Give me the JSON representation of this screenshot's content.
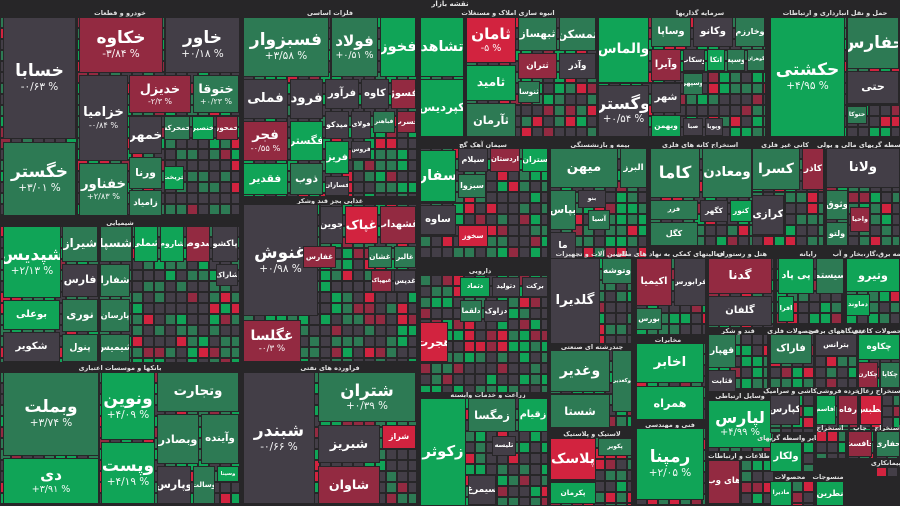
{
  "title": "نقشه بازار",
  "colors": {
    "up": "#10a457",
    "up-mild": "#2d7a54",
    "flat": "#433e47",
    "down-mild": "#932a41",
    "down": "#d2233f",
    "background": "#272628"
  },
  "sectors": [
    {
      "title": "خودرو و قطعات",
      "tiles": [
        {
          "name": "خسابا",
          "change": "-۰/۶۳ %",
          "trend": "flat"
        },
        {
          "name": "خکاوه",
          "change": "-۳/۸۴ %",
          "trend": "down-mild"
        },
        {
          "name": "خاور",
          "change": "+۰/۱۸ %",
          "trend": "flat"
        },
        {
          "name": "خگستر",
          "change": "+۳/۰۱ %",
          "trend": "up-mild"
        },
        {
          "name": "خزامیا",
          "change": "-۰/۸۴ %",
          "trend": "flat"
        },
        {
          "name": "خدیزل",
          "change": "-۲/۳ %",
          "trend": "down-mild"
        },
        {
          "name": "ختوقا",
          "change": "+۰/۲۳ %",
          "trend": "up-mild"
        },
        {
          "name": "خفناور",
          "change": "+۲/۸۳ %",
          "trend": "up-mild"
        },
        {
          "name": "خمهر",
          "trend": "flat"
        },
        {
          "name": "ورنا",
          "trend": "up-mild"
        },
        {
          "name": "خمحرکه",
          "trend": "up-mild"
        },
        {
          "name": "خنصیر",
          "trend": "up"
        },
        {
          "name": "خمحور",
          "trend": "down-mild"
        },
        {
          "name": "زامیاد",
          "trend": "up-mild"
        },
        {
          "name": "خریخت",
          "trend": "up"
        }
      ]
    },
    {
      "title": "فلزات اساسی",
      "tiles": [
        {
          "name": "فسبزوار",
          "change": "+۳/۵۸ %",
          "trend": "up-mild"
        },
        {
          "name": "فولاد",
          "change": "+۰/۵۱ %",
          "trend": "up-mild"
        },
        {
          "name": "فخوز",
          "trend": "up"
        },
        {
          "name": "فملی",
          "trend": "flat"
        },
        {
          "name": "فرود",
          "trend": "flat"
        },
        {
          "name": "فرآور",
          "trend": "flat"
        },
        {
          "name": "کاوه",
          "trend": "flat"
        },
        {
          "name": "فسوژ",
          "trend": "down-mild"
        },
        {
          "name": "فجر",
          "change": "-۰/۵۵ %",
          "trend": "down-mild"
        },
        {
          "name": "فگستر",
          "trend": "up"
        },
        {
          "name": "میدکو",
          "trend": "flat"
        },
        {
          "name": "فولای",
          "trend": "flat"
        },
        {
          "name": "فباهنر",
          "trend": "up-mild"
        },
        {
          "name": "فسرب",
          "trend": "down-mild"
        },
        {
          "name": "فقدیر",
          "trend": "up"
        },
        {
          "name": "ذوب",
          "trend": "up-mild"
        },
        {
          "name": "فروس",
          "trend": "flat"
        },
        {
          "name": "فریز",
          "trend": "up"
        },
        {
          "name": "فسازان",
          "trend": "flat"
        }
      ]
    },
    {
      "title": "",
      "tiles": [
        {
          "name": "تشاهد",
          "trend": "up"
        },
        {
          "name": "کپردیس",
          "trend": "up"
        }
      ]
    },
    {
      "title": "انبوه سازی املاک و مستغلات",
      "tiles": [
        {
          "name": "ثامان",
          "change": "-۵ %",
          "trend": "down"
        },
        {
          "name": "ثامید",
          "trend": "up"
        },
        {
          "name": "ثآرمان",
          "trend": "up-mild"
        },
        {
          "name": "ثبهساز",
          "trend": "up-mild"
        },
        {
          "name": "ثمسکن",
          "trend": "up-mild"
        },
        {
          "name": "ثتران",
          "trend": "down-mild"
        },
        {
          "name": "وآذر",
          "trend": "flat"
        },
        {
          "name": "ثنوسا",
          "trend": "up-mild"
        }
      ]
    },
    {
      "title": "سرمایه گذاریها",
      "tiles": [
        {
          "name": "والماس",
          "trend": "up"
        },
        {
          "name": "وگستر",
          "change": "+۰/۵۴ %",
          "trend": "flat"
        },
        {
          "name": "وساپا",
          "trend": "up-mild"
        },
        {
          "name": "وکانو",
          "trend": "flat"
        },
        {
          "name": "وخارزم",
          "trend": "up-mild"
        },
        {
          "name": "وآیرا",
          "trend": "down-mild"
        },
        {
          "name": "وسکاب",
          "trend": "flat"
        },
        {
          "name": "اتکا",
          "trend": "up"
        },
        {
          "name": "وسپه",
          "trend": "up-mild"
        },
        {
          "name": "گوهران",
          "trend": "up-mild"
        },
        {
          "name": "وسپهر",
          "trend": "up-mild"
        },
        {
          "name": "شهر",
          "trend": "flat"
        },
        {
          "name": "وبهمن",
          "trend": "up"
        },
        {
          "name": "صبا",
          "trend": "flat"
        },
        {
          "name": "وپویا",
          "trend": "flat"
        }
      ]
    },
    {
      "title": "حمل و نقل انبارداری و ارتباطات",
      "tiles": [
        {
          "name": "حکشتی",
          "change": "+۴/۹۵ %",
          "trend": "up"
        },
        {
          "name": "حفارس",
          "trend": "up-mild"
        },
        {
          "name": "حتی",
          "trend": "flat"
        },
        {
          "name": "حتوکا",
          "trend": "up-mild"
        }
      ]
    },
    {
      "title": "شیمیایی",
      "tiles": [
        {
          "name": "شپدیس",
          "change": "+۲/۱۳ %",
          "trend": "up"
        },
        {
          "name": "شیراز",
          "trend": "up-mild"
        },
        {
          "name": "شسپا",
          "trend": "up-mild"
        },
        {
          "name": "شملی",
          "trend": "up"
        },
        {
          "name": "شاروم",
          "trend": "up"
        },
        {
          "name": "شدوص",
          "trend": "down-mild"
        },
        {
          "name": "پاکشو",
          "trend": "flat"
        },
        {
          "name": "بوعلی",
          "trend": "up"
        },
        {
          "name": "شکویر",
          "trend": "flat"
        },
        {
          "name": "فارس",
          "trend": "flat"
        },
        {
          "name": "نوری",
          "trend": "up-mild"
        },
        {
          "name": "پنول",
          "trend": "up-mild"
        },
        {
          "name": "شفارا",
          "trend": "up-mild"
        },
        {
          "name": "پارسان",
          "trend": "up-mild"
        },
        {
          "name": "شیمیس",
          "trend": "up-mild"
        },
        {
          "name": "شاراک",
          "trend": "flat"
        }
      ]
    },
    {
      "title": "غذایی بجز قند وشکر",
      "tiles": [
        {
          "name": "غنوش",
          "change": "+۰/۹۸ %",
          "trend": "flat"
        },
        {
          "name": "غگلسا",
          "change": "-۰/۳ %",
          "trend": "down-mild"
        },
        {
          "name": "جوین",
          "trend": "flat"
        },
        {
          "name": "غپاک",
          "trend": "down"
        },
        {
          "name": "غشهداب",
          "trend": "down-mild"
        },
        {
          "name": "غفارس",
          "trend": "down-mild"
        },
        {
          "name": "غشان",
          "trend": "up-mild"
        },
        {
          "name": "غالبر",
          "trend": "up-mild"
        },
        {
          "name": "غدیس",
          "trend": "flat"
        },
        {
          "name": "غبهپاک",
          "trend": "down-mild"
        }
      ]
    },
    {
      "title": "سیمان آهک گچ",
      "tiles": [
        {
          "name": "سیلام",
          "trend": "flat"
        },
        {
          "name": "اردستان",
          "trend": "down-mild"
        },
        {
          "name": "ستران",
          "trend": "up"
        },
        {
          "name": "ساوه",
          "trend": "flat"
        },
        {
          "name": "سفار",
          "trend": "up"
        },
        {
          "name": "سبزوا",
          "trend": "up-mild"
        },
        {
          "name": "سخوز",
          "trend": "down"
        }
      ]
    },
    {
      "title": "بیمه و بازنشستگی",
      "tiles": [
        {
          "name": "میهن",
          "trend": "up-mild"
        },
        {
          "name": "البرز",
          "trend": "up-mild"
        },
        {
          "name": "بپاس",
          "trend": "up-mild"
        },
        {
          "name": "آسیا",
          "trend": "up-mild"
        },
        {
          "name": "ما",
          "trend": "flat"
        },
        {
          "name": "بنو",
          "trend": "flat"
        }
      ]
    },
    {
      "title": "استخراج کانه های فلزی",
      "tiles": [
        {
          "name": "کاما",
          "trend": "up-mild"
        },
        {
          "name": "ومعادن",
          "trend": "up-mild"
        },
        {
          "name": "فزر",
          "trend": "up-mild"
        },
        {
          "name": "کگل",
          "trend": "up-mild"
        },
        {
          "name": "کگهر",
          "trend": "flat"
        },
        {
          "name": "کنور",
          "trend": "up"
        }
      ]
    },
    {
      "title": "کانی غیر فلزی",
      "tiles": [
        {
          "name": "کسرا",
          "trend": "up-mild"
        },
        {
          "name": "کاذر",
          "trend": "down-mild"
        },
        {
          "name": "کرازی",
          "trend": "flat"
        }
      ]
    },
    {
      "title": "واسطه گریهای مالی و پولی",
      "tiles": [
        {
          "name": "ولانا",
          "trend": "flat"
        },
        {
          "name": "وثوق",
          "trend": "up-mild"
        },
        {
          "name": "واحیا",
          "trend": "down-mild"
        },
        {
          "name": "ولتو",
          "trend": "up-mild"
        }
      ]
    },
    {
      "title": "بانکها و موسسات اعتباری",
      "tiles": [
        {
          "name": "وبملت",
          "change": "+۳/۷۴ %",
          "trend": "up-mild"
        },
        {
          "name": "دی",
          "change": "+۳/۹۱ %",
          "trend": "up"
        },
        {
          "name": "ونوین",
          "change": "+۴/۰۹ %",
          "trend": "up"
        },
        {
          "name": "وپست",
          "change": "+۴/۱۹ %",
          "trend": "up"
        },
        {
          "name": "وتجارت",
          "trend": "up-mild"
        },
        {
          "name": "وبصادر",
          "trend": "up-mild"
        },
        {
          "name": "وآینده",
          "trend": "up-mild"
        },
        {
          "name": "وپارس",
          "trend": "flat"
        },
        {
          "name": "وسالت",
          "trend": "up-mild"
        },
        {
          "name": "وسینا",
          "trend": "up"
        }
      ]
    },
    {
      "title": "فراورده های نفتی",
      "tiles": [
        {
          "name": "شبندر",
          "change": "-۰/۶۶ %",
          "trend": "flat"
        },
        {
          "name": "شتران",
          "change": "+۰/۳۹ %",
          "trend": "up-mild"
        },
        {
          "name": "شبریز",
          "trend": "flat"
        },
        {
          "name": "شراز",
          "trend": "down"
        },
        {
          "name": "شاوان",
          "trend": "down-mild"
        }
      ]
    },
    {
      "title": "دارویی",
      "tiles": [
        {
          "name": "هجرت",
          "trend": "down"
        },
        {
          "name": "دتماد",
          "trend": "up"
        },
        {
          "name": "دتولید",
          "trend": "flat"
        },
        {
          "name": "برکت",
          "trend": "flat"
        },
        {
          "name": "دلقما",
          "trend": "up-mild"
        },
        {
          "name": "دزاوک",
          "trend": "flat"
        }
      ]
    },
    {
      "title": "ماشین آلات و تجهیزات",
      "tiles": [
        {
          "name": "گلدیرا",
          "trend": "flat"
        },
        {
          "name": "وتوشه",
          "trend": "up-mild"
        }
      ]
    },
    {
      "title": "فعالیتهای کمکی به نهاد های مالی",
      "tiles": [
        {
          "name": "اکیمیا",
          "trend": "down-mild"
        },
        {
          "name": "فرابورس",
          "trend": "flat"
        },
        {
          "name": "بورس",
          "trend": "up-mild"
        }
      ]
    },
    {
      "title": "هتل و رستوران",
      "tiles": [
        {
          "name": "گدنا",
          "trend": "down-mild"
        },
        {
          "name": "گلفان",
          "trend": "flat"
        }
      ]
    },
    {
      "title": "رایانه",
      "tiles": [
        {
          "name": "پی پاد",
          "trend": "up"
        },
        {
          "name": "سیستم",
          "trend": "up-mild"
        },
        {
          "name": "افرا",
          "trend": "up"
        }
      ]
    },
    {
      "title": "عرضه برق،گاز،بخار و آب",
      "tiles": [
        {
          "name": "وتیرو",
          "trend": "up"
        },
        {
          "name": "دماوند",
          "trend": "up"
        }
      ]
    },
    {
      "title": "چندرشته ای صنعتی",
      "tiles": [
        {
          "name": "وغدیر",
          "trend": "up-mild"
        },
        {
          "name": "شستا",
          "trend": "up-mild"
        },
        {
          "name": "وکغدیر",
          "trend": "up-mild"
        }
      ]
    },
    {
      "title": "مخابرات",
      "tiles": [
        {
          "name": "اخابر",
          "trend": "up"
        },
        {
          "name": "همراه",
          "trend": "up"
        }
      ]
    },
    {
      "title": "زراعت و خدمات وابسته",
      "tiles": [
        {
          "name": "زکوثر",
          "trend": "up"
        },
        {
          "name": "زمگسا",
          "trend": "up-mild"
        },
        {
          "name": "زقیام",
          "trend": "up"
        },
        {
          "name": "سیمرغ",
          "trend": "flat"
        },
        {
          "name": "تلیسه",
          "trend": "flat"
        }
      ]
    },
    {
      "title": "لاستیک و پلاستیک",
      "tiles": [
        {
          "name": "پلاسک",
          "trend": "down"
        },
        {
          "name": "پکویر",
          "trend": "up-mild"
        },
        {
          "name": "پکرمان",
          "trend": "up"
        }
      ]
    },
    {
      "title": "فنی و مهندسی",
      "tiles": [
        {
          "name": "رمپنا",
          "change": "+۲/۰۵ %",
          "trend": "up"
        }
      ]
    },
    {
      "title": "قند و شکر",
      "tiles": [
        {
          "name": "قهپار",
          "trend": "up-mild"
        },
        {
          "name": "قثابت",
          "trend": "flat"
        }
      ]
    },
    {
      "title": "وسایل ارتباطی",
      "tiles": [
        {
          "name": "لپارس",
          "change": "+۴/۹۹ %",
          "trend": "up"
        }
      ]
    },
    {
      "title": "اطلاعات و ارتباطات",
      "tiles": [
        {
          "name": "های وب",
          "trend": "down-mild"
        }
      ]
    },
    {
      "title": "محصولات فلزی",
      "tiles": [
        {
          "name": "فاراک",
          "trend": "up-mild"
        }
      ]
    },
    {
      "title": "دستگاههای برقی",
      "tiles": [
        {
          "name": "بترانس",
          "trend": "flat"
        }
      ]
    },
    {
      "title": "محصولات کاغذی",
      "tiles": [
        {
          "name": "چکاوه",
          "trend": "up"
        },
        {
          "name": "چکارن",
          "trend": "down-mild"
        },
        {
          "name": "چکاپا",
          "trend": "up-mild"
        }
      ]
    },
    {
      "title": "کاشی و سرامیک",
      "tiles": [
        {
          "name": "کپارس",
          "trend": "flat"
        }
      ]
    },
    {
      "title": "خرده فروشی",
      "tiles": [
        {
          "name": "افاسم",
          "trend": "up"
        },
        {
          "name": "رفاه",
          "trend": "down-mild"
        }
      ]
    },
    {
      "title": "استخراج زغال",
      "tiles": [
        {
          "name": "کطبس",
          "trend": "down"
        }
      ]
    },
    {
      "title": "سایر واسطه گریهای",
      "tiles": [
        {
          "name": "ولکار",
          "trend": "up"
        }
      ]
    },
    {
      "title": "استخراج",
      "tiles": []
    },
    {
      "title": "چاپ",
      "tiles": [
        {
          "name": "چافست",
          "trend": "down-mild"
        }
      ]
    },
    {
      "title": "استخراج",
      "tiles": [
        {
          "name": "حفاری",
          "trend": "up-mild"
        }
      ]
    },
    {
      "title": "محصولات",
      "tiles": [
        {
          "name": "مادیرا",
          "trend": "up"
        }
      ]
    },
    {
      "title": "منسوجات",
      "tiles": [
        {
          "name": "نطرین",
          "trend": "up"
        }
      ]
    },
    {
      "title": "پیمانکاری",
      "tiles": []
    }
  ]
}
